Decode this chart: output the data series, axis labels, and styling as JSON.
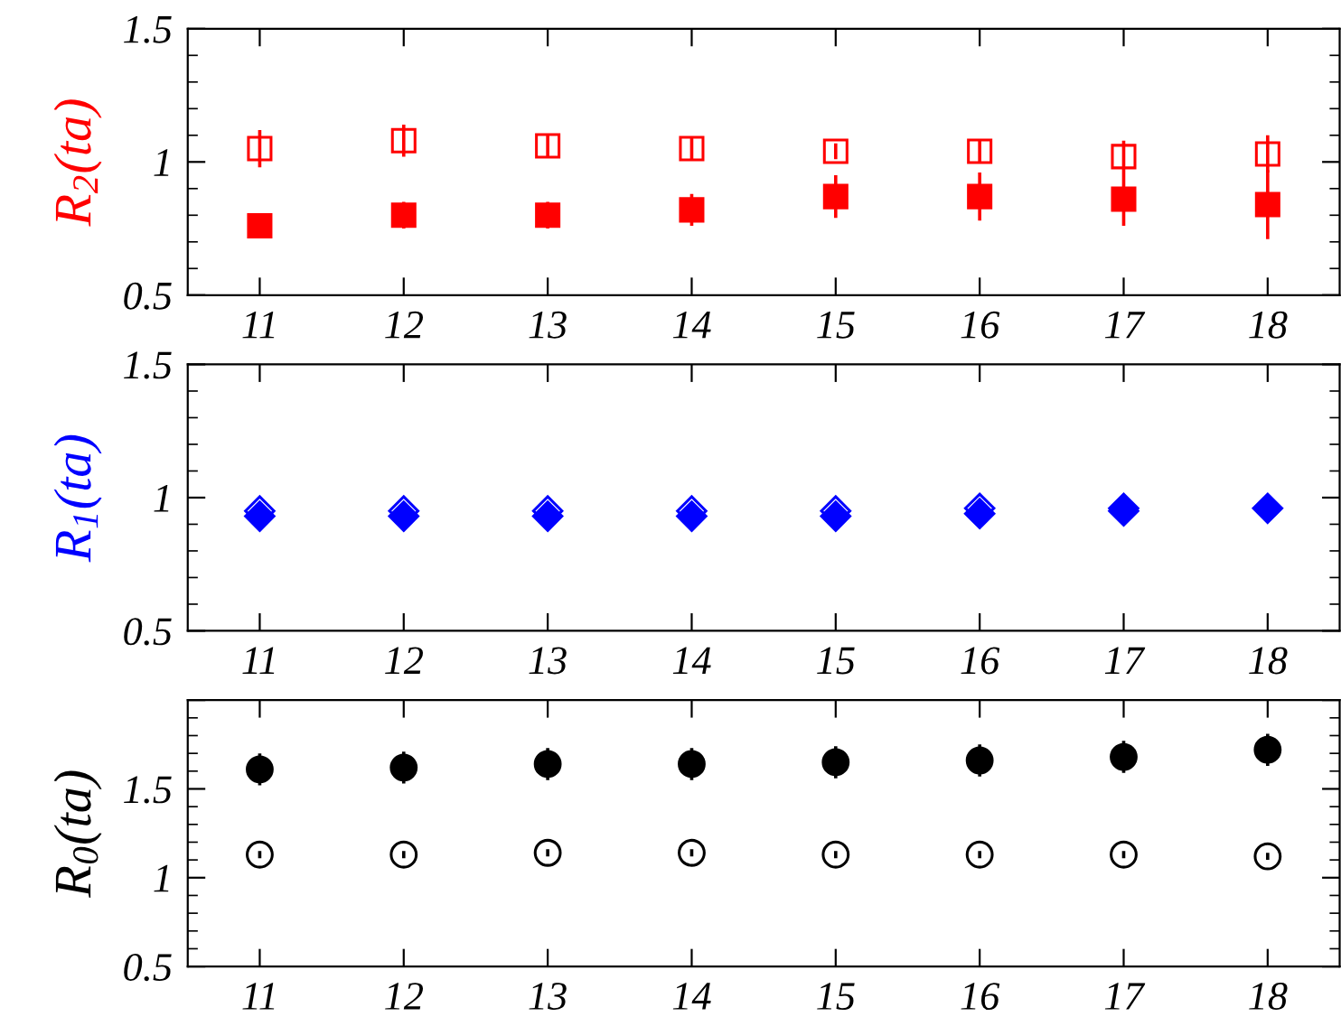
{
  "chart_data": [
    {
      "type": "scatter",
      "ylabel": "R$_{2}$(ta)",
      "x": [
        11,
        12,
        13,
        14,
        15,
        16,
        17,
        18
      ],
      "xlim": [
        10.5,
        18.5
      ],
      "xticks": [
        11,
        12,
        13,
        14,
        15,
        16,
        17,
        18
      ],
      "ylim": [
        0.5,
        1.5
      ],
      "yticks": [
        0.5,
        1,
        1.5
      ],
      "grid": false,
      "legend": false,
      "series": [
        {
          "color": "#ff0000",
          "marker": "square",
          "values": [
            1.05,
            1.08,
            1.06,
            1.05,
            1.04,
            1.04,
            1.02,
            1.03
          ],
          "errors": [
            0.07,
            0.06,
            0.04,
            0.04,
            0.03,
            0.04,
            0.06,
            0.07
          ]
        },
        {
          "color": "#ff0000",
          "marker": "square",
          "values": [
            0.76,
            0.8,
            0.8,
            0.82,
            0.87,
            0.87,
            0.86,
            0.84
          ],
          "errors": [
            0.04,
            0.05,
            0.05,
            0.06,
            0.08,
            0.09,
            0.1,
            0.13
          ]
        }
      ]
    },
    {
      "type": "scatter",
      "ylabel": "R$_{1}$(ta)",
      "x": [
        11,
        12,
        13,
        14,
        15,
        16,
        17,
        18
      ],
      "xlim": [
        10.5,
        18.5
      ],
      "xticks": [
        11,
        12,
        13,
        14,
        15,
        16,
        17,
        18
      ],
      "ylim": [
        0.5,
        1.5
      ],
      "yticks": [
        0.5,
        1,
        1.5
      ],
      "grid": false,
      "legend": false,
      "series": [
        {
          "color": "#0000ff",
          "marker": "diamond",
          "values": [
            0.95,
            0.95,
            0.95,
            0.95,
            0.95,
            0.96,
            0.96,
            null
          ],
          "errors": [
            0.01,
            0.01,
            0.01,
            0.01,
            0.01,
            0.01,
            0.01,
            null
          ]
        },
        {
          "color": "#0000ff",
          "marker": "diamond",
          "values": [
            0.93,
            0.93,
            0.93,
            0.93,
            0.93,
            0.94,
            0.95,
            0.96
          ],
          "errors": [
            0.01,
            0.01,
            0.01,
            0.01,
            0.01,
            0.01,
            0.01,
            0.01
          ]
        }
      ]
    },
    {
      "type": "scatter",
      "ylabel": "R$_{0}$(ta)",
      "x": [
        11,
        12,
        13,
        14,
        15,
        16,
        17,
        18
      ],
      "xlim": [
        10.5,
        18.5
      ],
      "xticks": [
        11,
        12,
        13,
        14,
        15,
        16,
        17,
        18
      ],
      "ylim": [
        0.5,
        2
      ],
      "yticks": [
        0.5,
        1,
        1.5,
        {
          "value": 2,
          "label": null
        }
      ],
      "grid": false,
      "legend": false,
      "series": [
        {
          "color": "#000000",
          "marker": "circle",
          "values": [
            1.13,
            1.13,
            1.14,
            1.14,
            1.13,
            1.13,
            1.13,
            1.12
          ],
          "errors": [
            0.02,
            0.02,
            0.02,
            0.02,
            0.02,
            0.02,
            0.02,
            0.02
          ]
        },
        {
          "color": "#000000",
          "marker": "circle",
          "values": [
            1.61,
            1.62,
            1.64,
            1.64,
            1.65,
            1.66,
            1.68,
            1.72
          ],
          "errors": [
            0.09,
            0.09,
            0.09,
            0.09,
            0.09,
            0.09,
            0.09,
            0.09
          ]
        }
      ]
    }
  ]
}
